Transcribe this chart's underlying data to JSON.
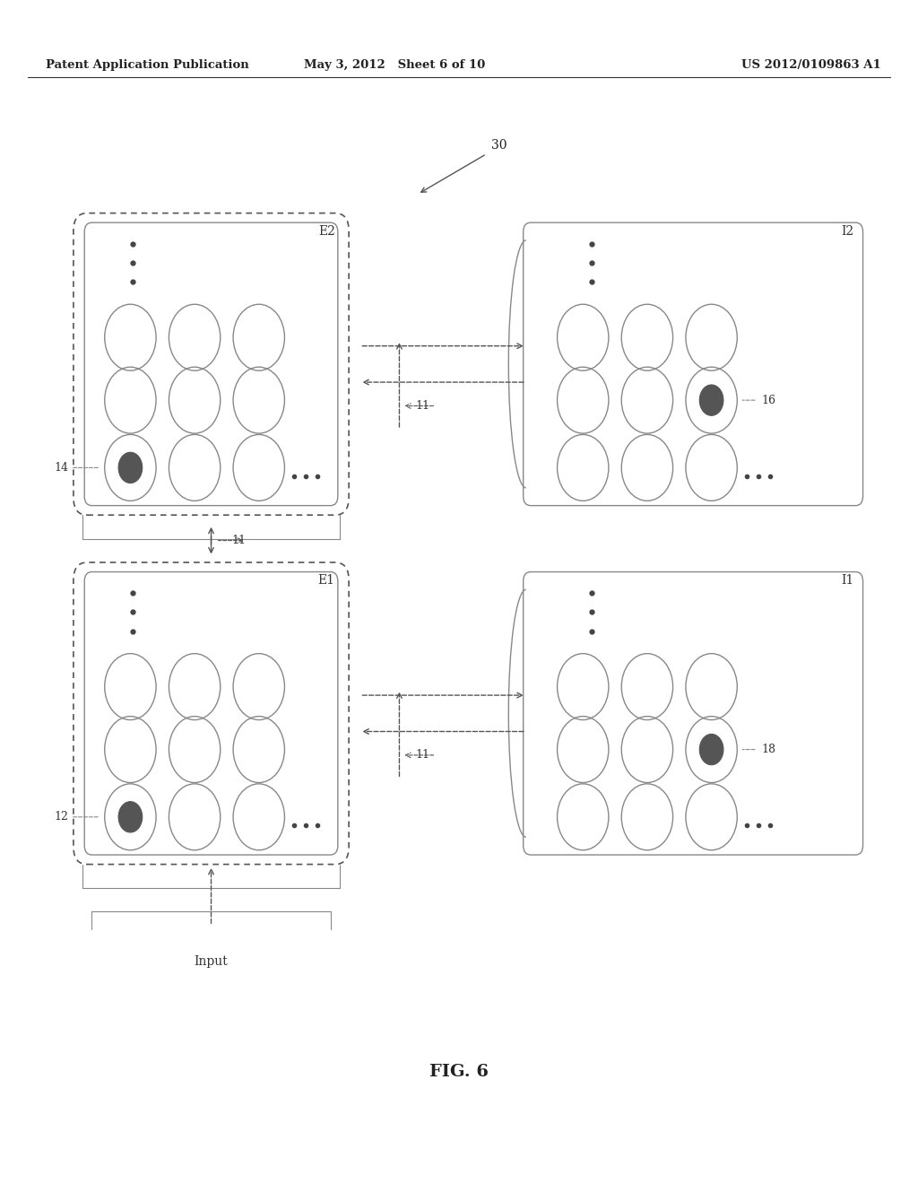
{
  "bg_color": "#ffffff",
  "header_left": "Patent Application Publication",
  "header_mid": "May 3, 2012   Sheet 6 of 10",
  "header_right": "US 2012/0109863 A1",
  "fig_label": "FIG. 6"
}
